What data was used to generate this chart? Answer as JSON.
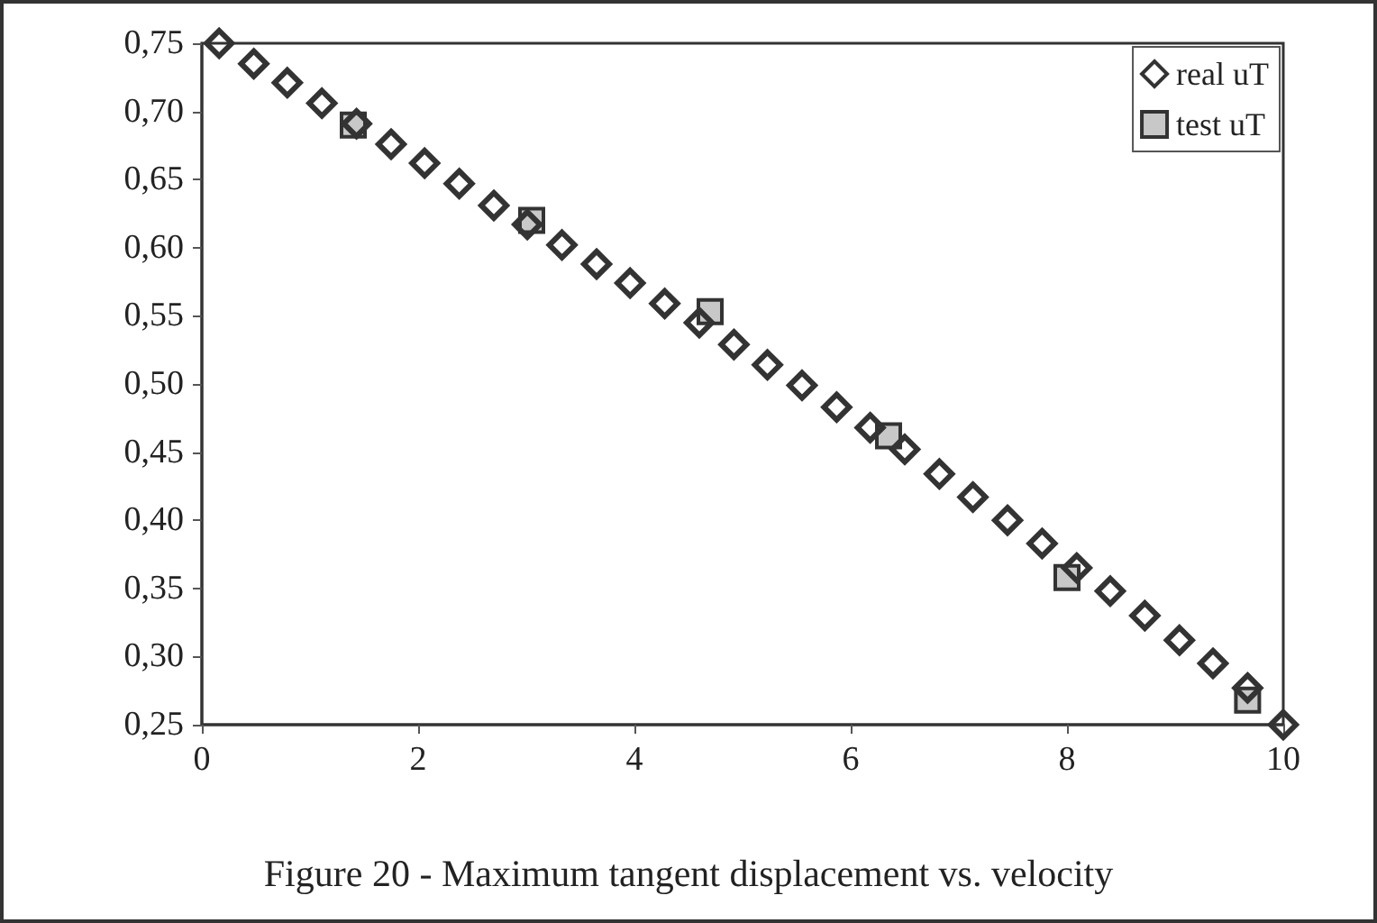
{
  "chart_data": {
    "type": "scatter",
    "title": "Figure 20 - Maximum tangent displacement vs. velocity",
    "xlim": [
      0,
      10
    ],
    "xticks": [
      0,
      2,
      4,
      6,
      8,
      10
    ],
    "ylim": [
      0.25,
      0.75
    ],
    "yticks": [
      {
        "value": 0.25,
        "label": "0,25"
      },
      {
        "value": 0.3,
        "label": "0,30"
      },
      {
        "value": 0.35,
        "label": "0,35"
      },
      {
        "value": 0.4,
        "label": "0,40"
      },
      {
        "value": 0.45,
        "label": "0,45"
      },
      {
        "value": 0.5,
        "label": "0,50"
      },
      {
        "value": 0.55,
        "label": "0,55"
      },
      {
        "value": 0.6,
        "label": "0,60"
      },
      {
        "value": 0.65,
        "label": "0,65"
      },
      {
        "value": 0.7,
        "label": "0,70"
      },
      {
        "value": 0.75,
        "label": "0,75"
      }
    ],
    "grid": false,
    "legend": "top right",
    "series": [
      {
        "name": "real uT",
        "color": "#333333",
        "marker": "diamond",
        "x": [
          0.16,
          0.48,
          0.79,
          1.11,
          1.43,
          1.75,
          2.06,
          2.38,
          2.7,
          3.01,
          3.33,
          3.65,
          3.96,
          4.28,
          4.6,
          4.92,
          5.23,
          5.55,
          5.87,
          6.18,
          6.5,
          6.82,
          7.13,
          7.45,
          7.77,
          8.09,
          8.4,
          8.72,
          9.04,
          9.35,
          9.67,
          10
        ],
        "values": [
          0.75,
          0.735,
          0.721,
          0.706,
          0.691,
          0.676,
          0.662,
          0.647,
          0.631,
          0.617,
          0.602,
          0.588,
          0.574,
          0.559,
          0.545,
          0.529,
          0.514,
          0.499,
          0.483,
          0.468,
          0.452,
          0.434,
          0.417,
          0.4,
          0.383,
          0.365,
          0.348,
          0.33,
          0.312,
          0.295,
          0.277,
          0.25
        ]
      },
      {
        "name": "test uT",
        "color": "#c8c8c8",
        "marker": "square",
        "x": [
          1.4,
          3.05,
          4.7,
          6.35,
          8.0,
          9.67
        ],
        "values": [
          0.69,
          0.62,
          0.553,
          0.462,
          0.358,
          0.268
        ]
      }
    ]
  }
}
